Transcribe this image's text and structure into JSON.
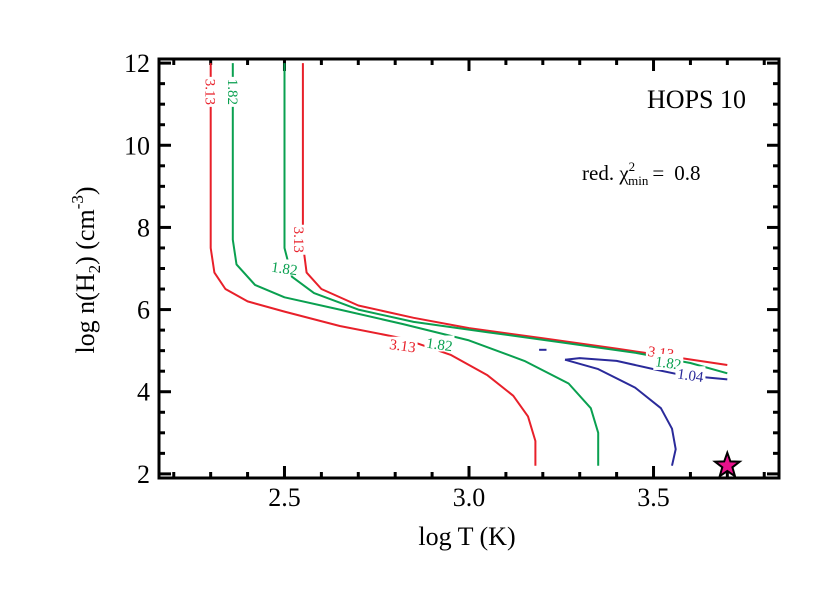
{
  "chart_data": {
    "type": "line",
    "subtype": "contour",
    "title": "",
    "xlabel": "log T (K)",
    "ylabel": "log n(H2) (cm^-3)",
    "xlim": [
      2.16,
      3.84
    ],
    "ylim": [
      1.9,
      12.1
    ],
    "x_ticks": [
      2.5,
      3.0,
      3.5
    ],
    "x_tick_labels": [
      "2.5",
      "3.0",
      "3.5"
    ],
    "y_ticks": [
      2,
      4,
      6,
      8,
      10,
      12
    ],
    "y_tick_labels": [
      "2",
      "4",
      "6",
      "8",
      "10",
      "12"
    ],
    "grid": false,
    "annotations": {
      "object_name": "HOPS 10",
      "chi2_label": "red. χ²_min =",
      "chi2_prefix": "red. χ",
      "chi2_sup": "2",
      "chi2_sub": "min",
      "chi2_equals": "=",
      "chi2_value": "0.8"
    },
    "series": [
      {
        "name": "3.13",
        "level": 3.13,
        "color": "#e8202a",
        "segments": [
          {
            "x": [
              2.3,
              2.3,
              2.3,
              2.31,
              2.34,
              2.4,
              2.5,
              2.65,
              2.82,
              2.95,
              3.05,
              3.12,
              3.16,
              3.18,
              3.18
            ],
            "y": [
              12.0,
              10.0,
              7.5,
              6.9,
              6.5,
              6.2,
              5.95,
              5.6,
              5.3,
              4.9,
              4.4,
              3.9,
              3.4,
              2.8,
              2.2
            ]
          },
          {
            "x": [
              2.55,
              2.55,
              2.55,
              2.56,
              2.6,
              2.7,
              2.85,
              3.0,
              3.2,
              3.4,
              3.55,
              3.7
            ],
            "y": [
              12.0,
              9.5,
              7.6,
              6.9,
              6.5,
              6.1,
              5.8,
              5.55,
              5.3,
              5.05,
              4.85,
              4.65
            ]
          }
        ],
        "label_positions": [
          [
            2.3,
            11.3
          ],
          [
            2.54,
            7.7
          ],
          [
            2.82,
            5.12
          ],
          [
            3.52,
            4.95
          ]
        ]
      },
      {
        "name": "1.82",
        "level": 1.82,
        "color": "#0aa050",
        "segments": [
          {
            "x": [
              2.36,
              2.36,
              2.36,
              2.37,
              2.42,
              2.5,
              2.65,
              2.82,
              3.0,
              3.15,
              3.27,
              3.33,
              3.35,
              3.35
            ],
            "y": [
              12.0,
              10.0,
              7.7,
              7.1,
              6.6,
              6.3,
              6.0,
              5.65,
              5.25,
              4.75,
              4.2,
              3.6,
              3.0,
              2.2
            ]
          },
          {
            "x": [
              2.5,
              2.5,
              2.5,
              2.52,
              2.58,
              2.7,
              2.85,
              3.05,
              3.25,
              3.45,
              3.6,
              3.7
            ],
            "y": [
              12.0,
              9.5,
              7.5,
              6.8,
              6.4,
              6.0,
              5.7,
              5.45,
              5.2,
              4.95,
              4.7,
              4.45
            ]
          }
        ],
        "label_positions": [
          [
            2.36,
            11.3
          ],
          [
            2.5,
            7.0
          ],
          [
            2.92,
            5.15
          ],
          [
            3.54,
            4.7
          ]
        ]
      },
      {
        "name": "1.04",
        "level": 1.04,
        "color": "#2a2a9a",
        "segments": [
          {
            "x": [
              3.26,
              3.3,
              3.4,
              3.5,
              3.58,
              3.7
            ],
            "y": [
              4.78,
              4.82,
              4.75,
              4.55,
              4.4,
              4.3
            ]
          },
          {
            "x": [
              3.26,
              3.35,
              3.45,
              3.52,
              3.55,
              3.56,
              3.55
            ],
            "y": [
              4.78,
              4.55,
              4.1,
              3.6,
              3.1,
              2.6,
              2.2
            ]
          },
          {
            "x": [
              3.19,
              3.21
            ],
            "y": [
              5.02,
              5.02
            ]
          }
        ],
        "label_positions": [
          [
            3.6,
            4.4
          ]
        ]
      }
    ],
    "markers": [
      {
        "name": "best-fit",
        "shape": "star",
        "x": 3.7,
        "y": 2.2,
        "color": "#e8128c",
        "edgecolor": "#000000"
      }
    ]
  }
}
